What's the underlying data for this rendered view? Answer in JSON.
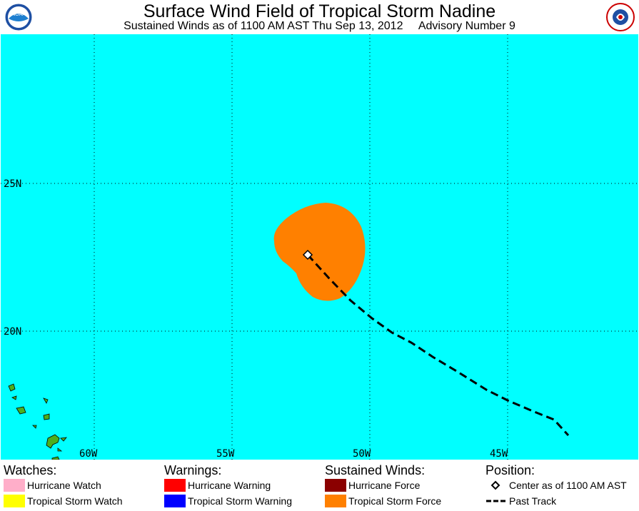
{
  "header": {
    "title": "Surface Wind Field of Tropical Storm Nadine",
    "subtitle": "Sustained Winds as of 1100 AM AST Thu Sep 13, 2012     Advisory Number 9",
    "left_logo_text": "NOAA",
    "right_logo_text": "NATIONAL WEATHER SERVICE"
  },
  "map": {
    "ocean_color": "#00ffff",
    "wind_field_color": "#ff8000",
    "land_color": "#4caf1e",
    "lat_labels": [
      "25N",
      "20N"
    ],
    "lon_labels": [
      "60W",
      "55W",
      "50W",
      "45W"
    ],
    "center_marker": "diamond-icon",
    "track_style": "dashed"
  },
  "legend": {
    "watches": {
      "heading": "Watches:",
      "items": [
        {
          "label": "Hurricane Watch",
          "color": "#ffaec9"
        },
        {
          "label": "Tropical Storm Watch",
          "color": "#ffff00"
        }
      ]
    },
    "warnings": {
      "heading": "Warnings:",
      "items": [
        {
          "label": "Hurricane Warning",
          "color": "#ff0000"
        },
        {
          "label": "Tropical Storm Warning",
          "color": "#0000ff"
        }
      ]
    },
    "winds": {
      "heading": "Sustained Winds:",
      "items": [
        {
          "label": "Hurricane Force",
          "color": "#8b0000"
        },
        {
          "label": "Tropical Storm Force",
          "color": "#ff8000"
        }
      ]
    },
    "position": {
      "heading": "Position:",
      "items": [
        {
          "label": "Center as of 1100 AM AST",
          "icon": "diamond-icon"
        },
        {
          "label": "Past Track",
          "icon": "dashed-line-icon"
        }
      ]
    }
  }
}
